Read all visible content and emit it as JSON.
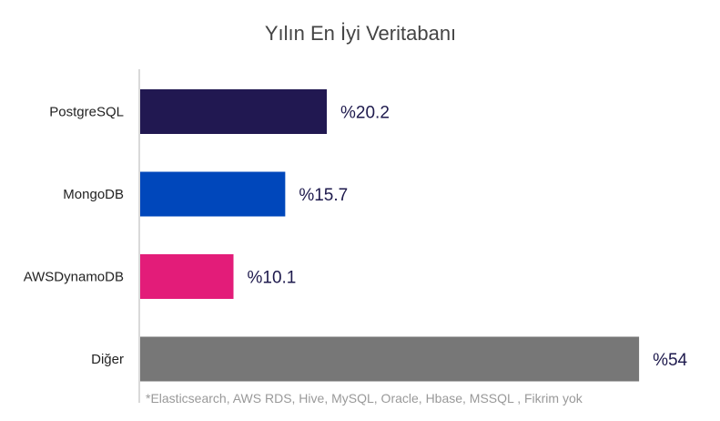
{
  "chart_data": {
    "type": "bar",
    "orientation": "horizontal",
    "title": "Yılın En İyi Veritabanı",
    "categories": [
      "PostgreSQL",
      "MongoDB",
      "AWSDynamoDB",
      "Diğer"
    ],
    "values": [
      20.2,
      15.7,
      10.1,
      54
    ],
    "value_labels": [
      "%20.2",
      "%15.7",
      "%10.1",
      "%54"
    ],
    "colors": [
      "#211851",
      "#0047BB",
      "#E31C79",
      "#777777"
    ],
    "xlabel": "",
    "ylabel": "",
    "xlim": [
      0,
      55
    ],
    "grid": false,
    "footnote": "*Elasticsearch, AWS RDS, Hive, MySQL, Oracle, Hbase, MSSQL , Fikrim yok"
  }
}
